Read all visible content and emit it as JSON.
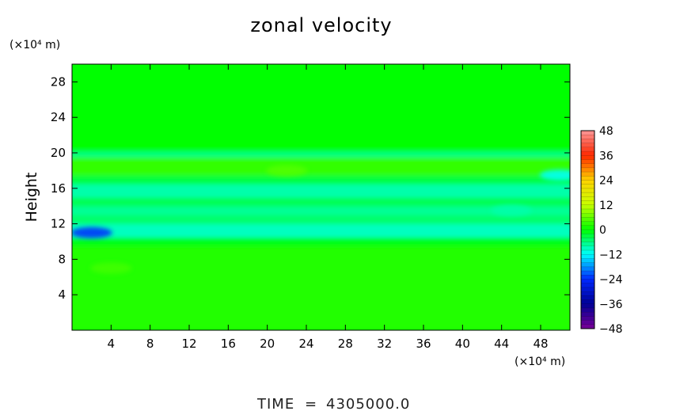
{
  "chart_data": {
    "type": "heatmap",
    "title": "zonal velocity",
    "ylabel": "Height",
    "xunit": "(×10⁴ m)",
    "yunit": "(×10⁴ m)",
    "xlim": [
      0,
      51
    ],
    "ylim": [
      0,
      30
    ],
    "xticks": [
      4,
      8,
      12,
      16,
      20,
      24,
      28,
      32,
      36,
      40,
      44,
      48
    ],
    "yticks": [
      4,
      8,
      12,
      16,
      20,
      24,
      28
    ],
    "xticklabels": [
      "4",
      "8",
      "12",
      "16",
      "20",
      "24",
      "28",
      "32",
      "36",
      "40",
      "44",
      "48"
    ],
    "yticklabels": [
      "4",
      "8",
      "12",
      "16",
      "20",
      "24",
      "28"
    ],
    "colorbar": {
      "range": [
        -48,
        48
      ],
      "ticks": [
        48,
        36,
        24,
        12,
        0,
        -12,
        -24,
        -36,
        -48
      ],
      "ticklabels": [
        "48",
        "36",
        "24",
        "12",
        "0",
        "−12",
        "−24",
        "−36",
        "−48"
      ]
    },
    "bands": [
      {
        "y0": 0,
        "y1": 9.5,
        "value": 2
      },
      {
        "y0": 9.5,
        "y1": 10.5,
        "value": -1
      },
      {
        "y0": 10.5,
        "y1": 12,
        "value": -9
      },
      {
        "y0": 12,
        "y1": 13,
        "value": -5
      },
      {
        "y0": 13,
        "y1": 14,
        "value": -7
      },
      {
        "y0": 14,
        "y1": 15,
        "value": -4
      },
      {
        "y0": 15,
        "y1": 16.5,
        "value": -8
      },
      {
        "y0": 16.5,
        "y1": 17.5,
        "value": -3
      },
      {
        "y0": 17.5,
        "y1": 19.5,
        "value": 3
      },
      {
        "y0": 19.5,
        "y1": 20.2,
        "value": -6
      },
      {
        "y0": 20.2,
        "y1": 30,
        "value": 0
      }
    ],
    "anomalies": [
      {
        "x": 2,
        "y": 11,
        "value": -24
      },
      {
        "x": 50,
        "y": 17.5,
        "value": -12
      },
      {
        "x": 45,
        "y": 13.5,
        "value": -8
      },
      {
        "x": 4,
        "y": 7,
        "value": 4
      },
      {
        "x": 22,
        "y": 18,
        "value": 5
      }
    ]
  },
  "footer": {
    "time_label": "TIME",
    "time_eq": "=",
    "time_value": "4305000.0"
  }
}
